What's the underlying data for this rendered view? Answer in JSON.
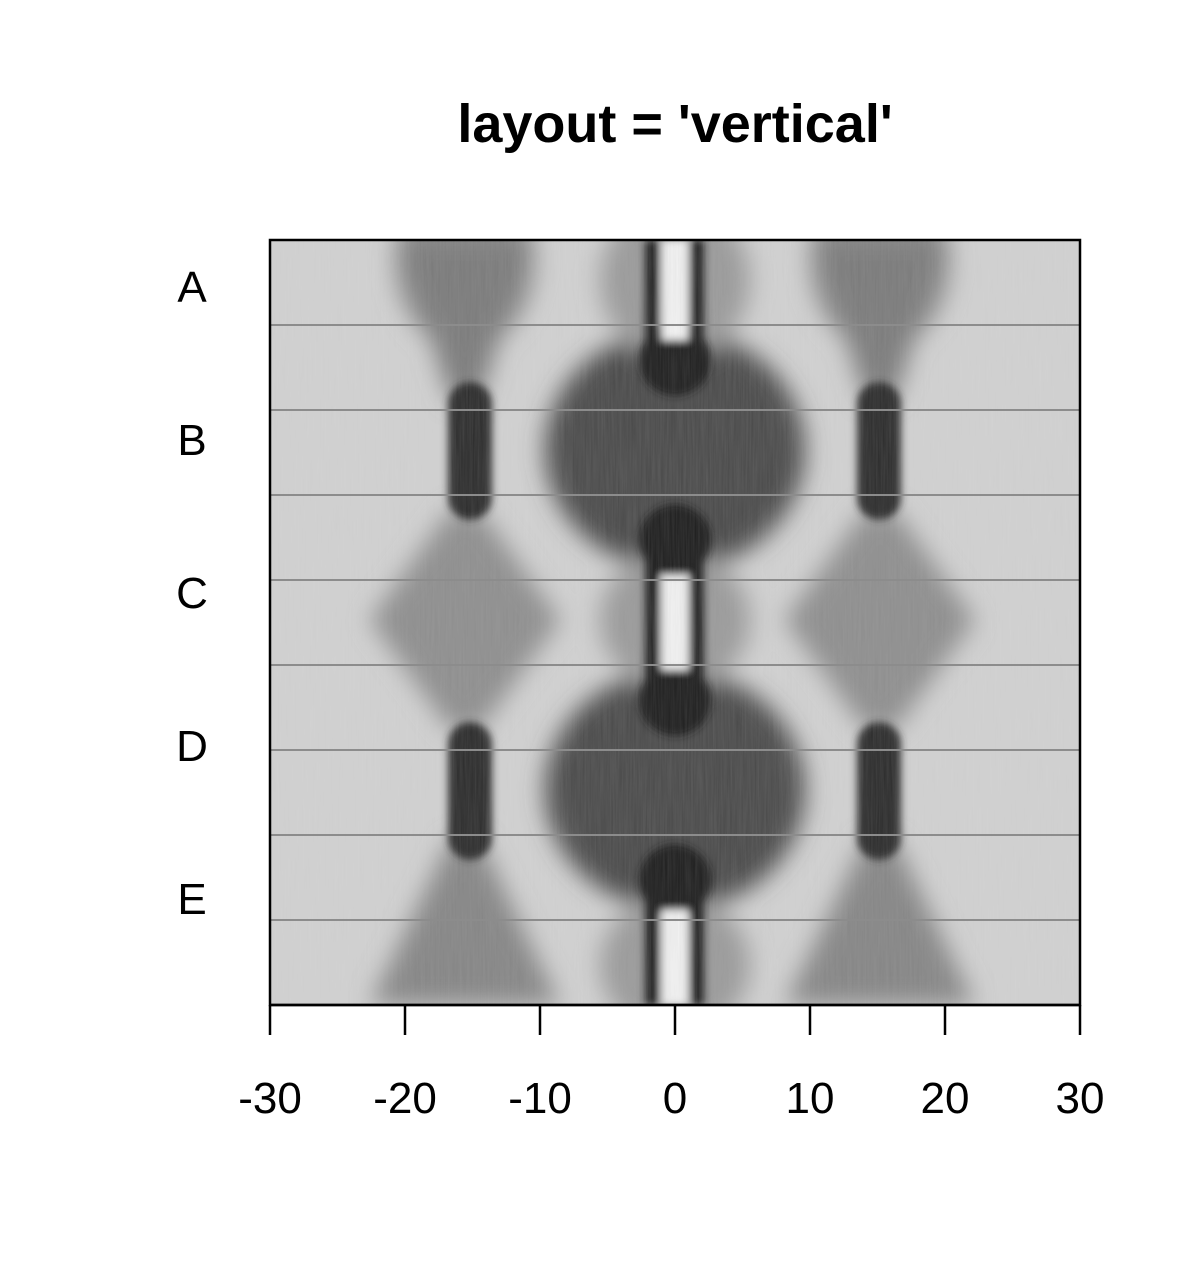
{
  "chart_data": {
    "type": "heatmap",
    "title": "layout = 'vertical'",
    "xlabel": "",
    "ylabel": "",
    "xlim": [
      -30,
      30
    ],
    "x_ticks": [
      -30,
      -20,
      -10,
      0,
      10,
      20,
      30
    ],
    "x_tick_labels": [
      "-30",
      "-20",
      "-10",
      "0",
      "10",
      "20",
      "30"
    ],
    "rows": [
      "A",
      "B",
      "C",
      "D",
      "E"
    ],
    "colormap": "grayscale",
    "grid": false,
    "colors": {
      "background": "#ffffff",
      "axis": "#000000",
      "separator": "#8c8c8c"
    }
  }
}
